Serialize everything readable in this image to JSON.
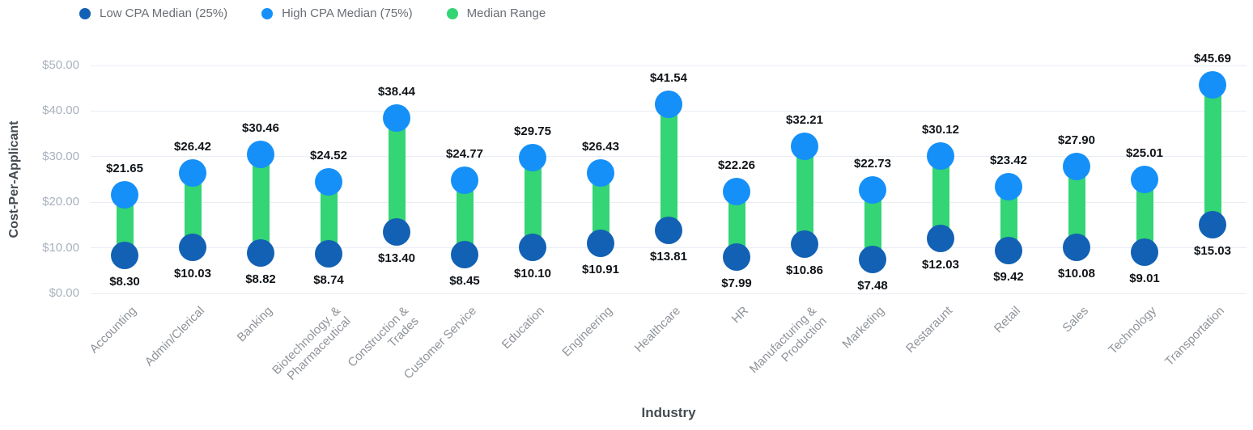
{
  "chart_data": {
    "type": "dumbbell-range",
    "title": "",
    "xlabel": "Industry",
    "ylabel": "Cost-Per-Applicant",
    "ylim": [
      0,
      50
    ],
    "grid": true,
    "legend_position": "top-left",
    "y_ticks": [
      {
        "value": 0,
        "label": "$0.00"
      },
      {
        "value": 10,
        "label": "$10.00"
      },
      {
        "value": 20,
        "label": "$20.00"
      },
      {
        "value": 30,
        "label": "$30.00"
      },
      {
        "value": 40,
        "label": "$40.00"
      },
      {
        "value": 50,
        "label": "$50.00"
      }
    ],
    "legend": [
      {
        "label": "Low CPA Median (25%)",
        "color": "#1261b4"
      },
      {
        "label": "High CPA Median (75%)",
        "color": "#1590f8"
      },
      {
        "label": "Median Range",
        "color": "#33d574"
      }
    ],
    "categories": [
      [
        "Accounting"
      ],
      [
        "Admin/Clerical"
      ],
      [
        "Banking"
      ],
      [
        "Biotechnology. &",
        "Pharmaceutical"
      ],
      [
        "Construction &",
        "Trades"
      ],
      [
        "Customer Service"
      ],
      [
        "Education"
      ],
      [
        "Engineering"
      ],
      [
        "Healthcare"
      ],
      [
        "HR"
      ],
      [
        "Manufacturing &",
        "Production"
      ],
      [
        "Marketing"
      ],
      [
        "Restaraunt"
      ],
      [
        "Retail"
      ],
      [
        "Sales"
      ],
      [
        "Technology"
      ],
      [
        "Transportation"
      ]
    ],
    "series": [
      {
        "name": "Low CPA Median (25%)",
        "values": [
          8.3,
          10.03,
          8.82,
          8.74,
          13.4,
          8.45,
          10.1,
          10.91,
          13.81,
          7.99,
          10.86,
          7.48,
          12.03,
          9.42,
          10.08,
          9.01,
          15.03
        ]
      },
      {
        "name": "High CPA Median (75%)",
        "values": [
          21.65,
          26.42,
          30.46,
          24.52,
          38.44,
          24.77,
          29.75,
          26.43,
          41.54,
          22.26,
          32.21,
          22.73,
          30.12,
          23.42,
          27.9,
          25.01,
          45.69
        ]
      }
    ],
    "value_prefix": "$"
  }
}
